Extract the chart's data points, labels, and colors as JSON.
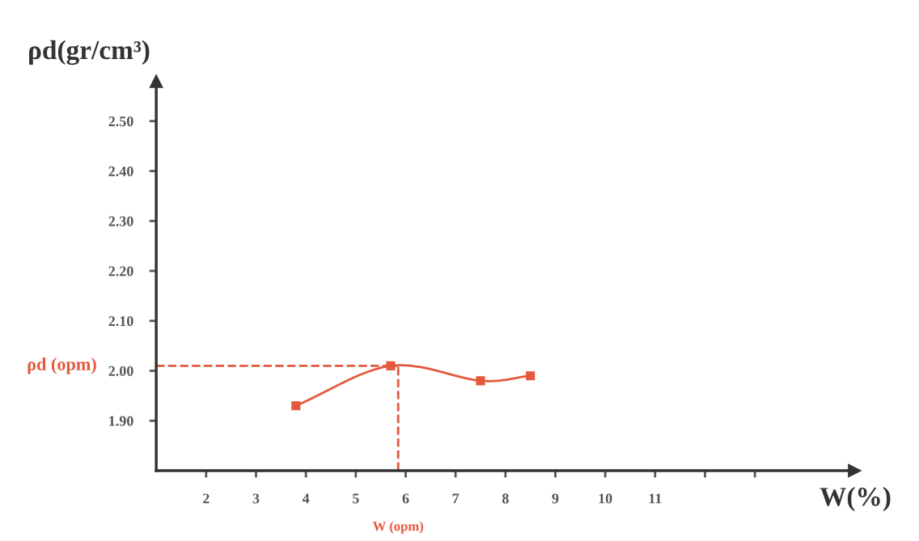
{
  "chart_data": {
    "type": "line",
    "ylabel": "ρd(gr/cm³)",
    "xlabel": "W(%)",
    "series": [
      {
        "x": [
          3.8,
          5.7,
          7.5,
          8.5
        ],
        "values": [
          1.93,
          2.01,
          1.98,
          1.99
        ],
        "color": "#e4583c"
      }
    ],
    "marker": "square",
    "line_style": "solid",
    "xlim": [
      1,
      15
    ],
    "xticks": [
      2,
      3,
      4,
      5,
      6,
      7,
      8,
      9,
      10,
      11,
      {
        "value": 12,
        "label": null
      },
      {
        "value": 13,
        "label": null
      }
    ],
    "ylim": [
      1.8,
      2.58
    ],
    "yticks": [
      {
        "value": 1.9,
        "label": "1.90"
      },
      {
        "value": 2.0,
        "label": "2.00"
      },
      {
        "value": 2.1,
        "label": "2.10"
      },
      {
        "value": 2.2,
        "label": "2.20"
      },
      {
        "value": 2.3,
        "label": "2.30"
      },
      {
        "value": 2.4,
        "label": "2.40"
      },
      {
        "value": 2.5,
        "label": "2.50"
      }
    ],
    "ref_lines": [
      {
        "axis": "y",
        "value": 2.01,
        "label": "ρd (opm)",
        "color": "#e4583c",
        "line_style": "dashed"
      },
      {
        "axis": "x",
        "value": 5.85,
        "label": "W (opm)",
        "color": "#e4583c",
        "line_style": "dashed"
      }
    ],
    "grid": false,
    "legend": false
  }
}
